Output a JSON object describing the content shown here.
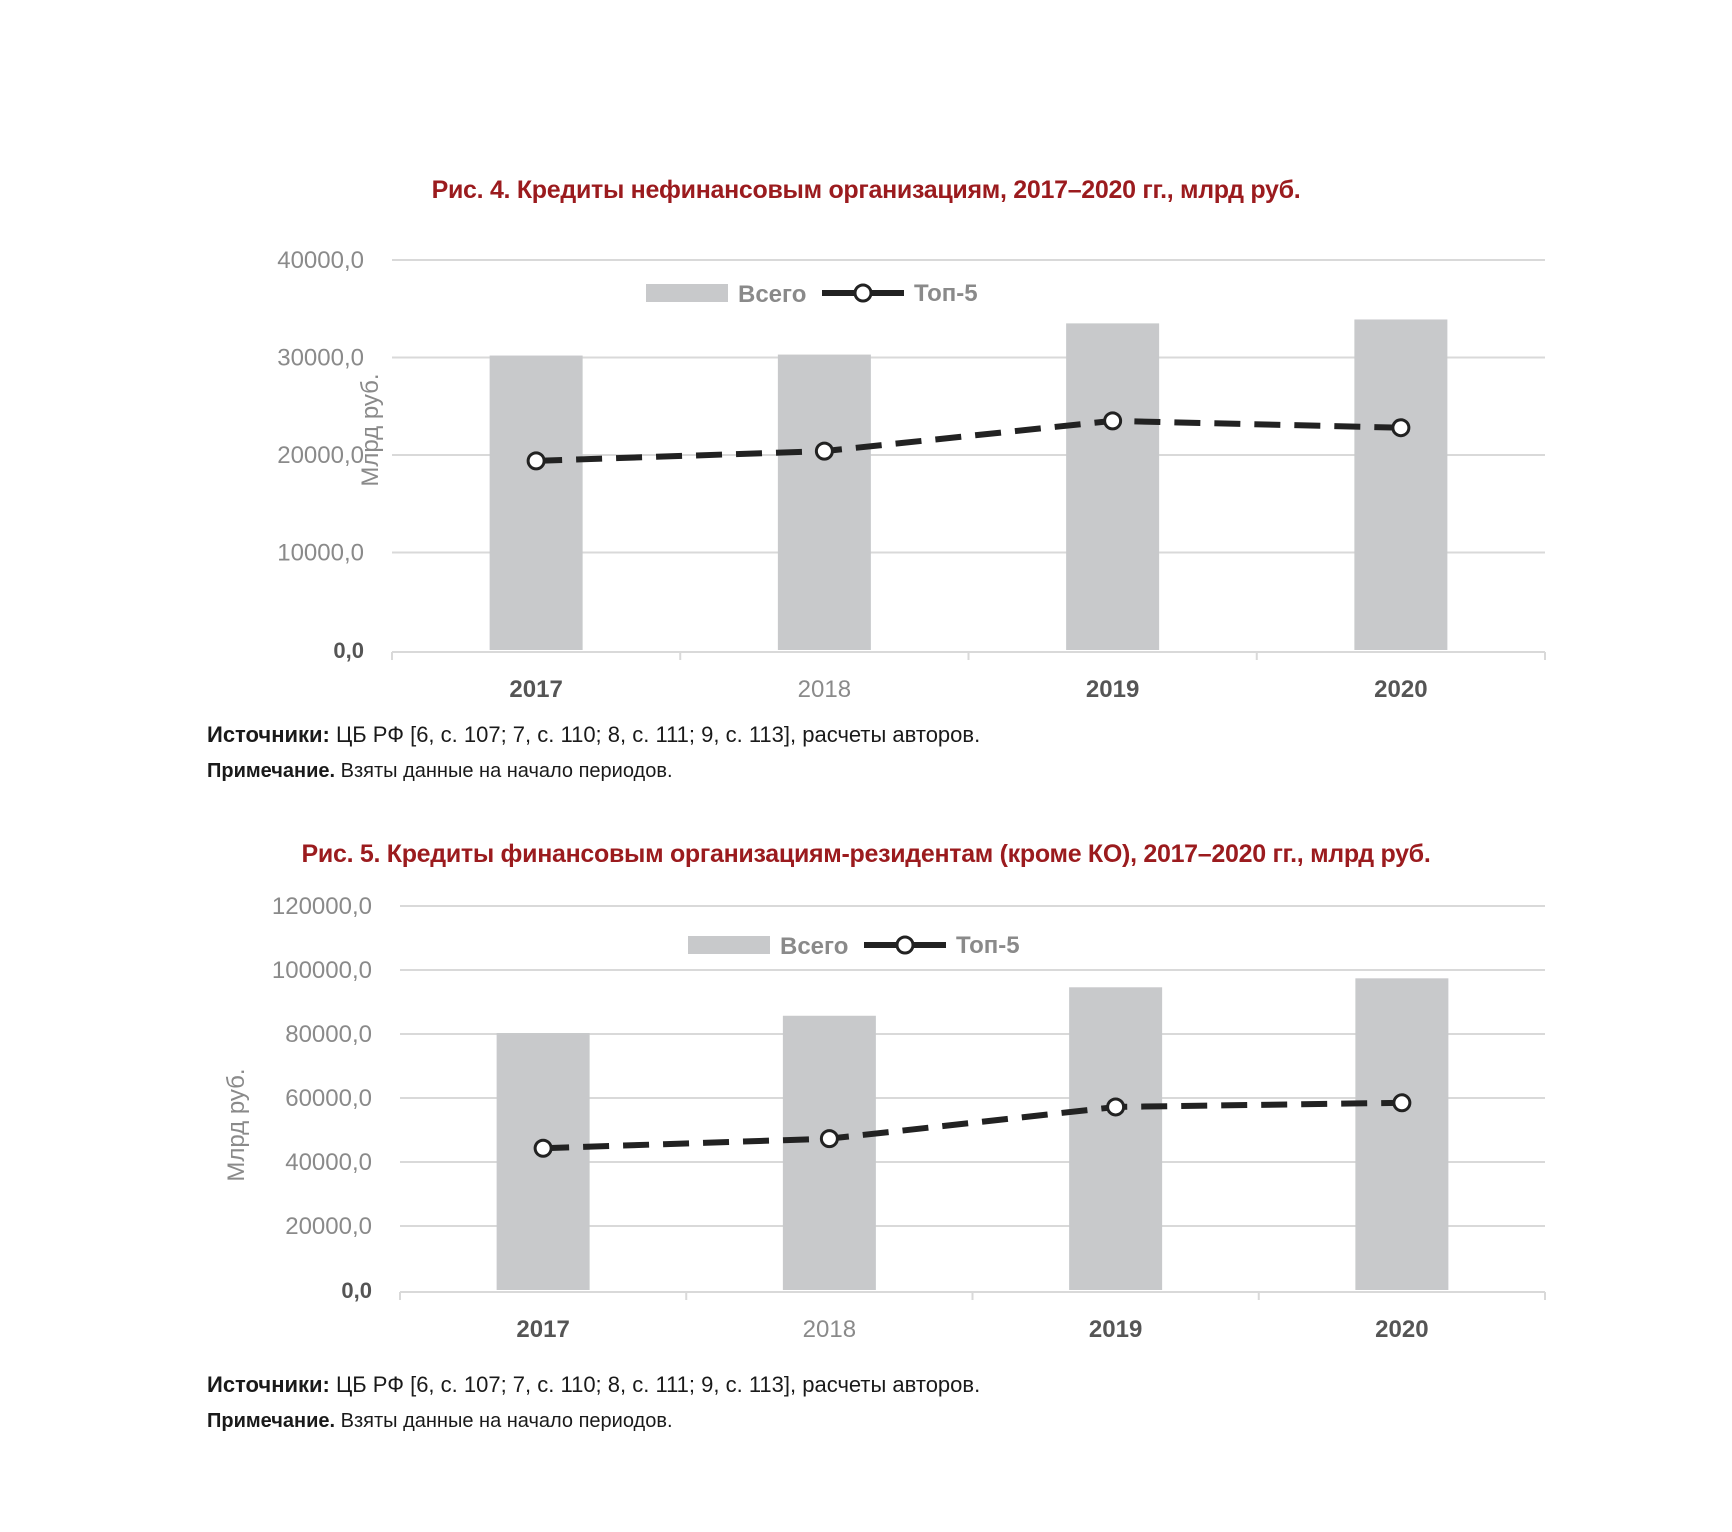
{
  "figures": [
    {
      "title": "Рис. 4. Кредиты нефинансовым организациям, 2017–2020 гг., млрд руб.",
      "sources_label": "Источники:",
      "sources_text": " ЦБ РФ [6, с. 107; 7, с. 110; 8, с. 111; 9, с. 113], расчеты авторов.",
      "note_label": "Примечание.",
      "note_text": " Взяты данные на начало периодов."
    },
    {
      "title": "Рис. 5. Кредиты финансовым организациям-резидентам (кроме КО), 2017–2020 гг., млрд руб.",
      "sources_label": "Источники:",
      "sources_text": " ЦБ РФ [6, с. 107; 7, с. 110; 8, с. 111; 9, с. 113], расчеты авторов.",
      "note_label": "Примечание.",
      "note_text": " Взяты данные на начало периодов."
    }
  ],
  "colors": {
    "title": "#9b1b1e",
    "bar": "#c8c9cb",
    "line": "#222222",
    "grid": "#d9d9d9",
    "tick": "#8a8a8a",
    "bold_tick": "#555555"
  },
  "chart_data": [
    {
      "type": "bar",
      "ylabel": "Млрд руб.",
      "categories": [
        "2017",
        "2018",
        "2019",
        "2020"
      ],
      "ylim": [
        0,
        40000
      ],
      "yticks": [
        "0,0",
        "10000,0",
        "20000,0",
        "30000,0",
        "40000,0"
      ],
      "grid": true,
      "legend": "top-center",
      "series": [
        {
          "name": "Всего",
          "type": "bar",
          "values": [
            30200,
            30300,
            33500,
            33900
          ]
        },
        {
          "name": "Топ-5",
          "type": "line",
          "values": [
            19400,
            20400,
            23500,
            22800
          ]
        }
      ]
    },
    {
      "type": "bar",
      "ylabel": "Млрд руб.",
      "categories": [
        "2017",
        "2018",
        "2019",
        "2020"
      ],
      "ylim": [
        0,
        120000
      ],
      "yticks": [
        "0,0",
        "20000,0",
        "40000,0",
        "60000,0",
        "80000,0",
        "100000,0",
        "120000,0"
      ],
      "grid": true,
      "legend": "top-center",
      "series": [
        {
          "name": "Всего",
          "type": "bar",
          "values": [
            80300,
            85700,
            94600,
            97400
          ]
        },
        {
          "name": "Топ-5",
          "type": "line",
          "values": [
            44300,
            47300,
            57200,
            58500
          ]
        }
      ]
    }
  ]
}
